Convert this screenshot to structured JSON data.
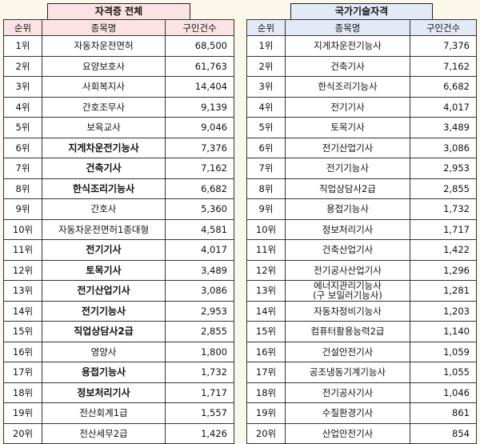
{
  "left": {
    "title": "자격증 전체",
    "headers": {
      "rank": "순위",
      "name": "종목명",
      "count": "구인건수"
    },
    "rows": [
      {
        "rank": "1위",
        "name": "자동차운전면허",
        "count": "68,500",
        "bold": false
      },
      {
        "rank": "2위",
        "name": "요양보호사",
        "count": "61,763",
        "bold": false
      },
      {
        "rank": "3위",
        "name": "사회복지사",
        "count": "14,404",
        "bold": false
      },
      {
        "rank": "4위",
        "name": "간호조무사",
        "count": "9,139",
        "bold": false
      },
      {
        "rank": "5위",
        "name": "보육교사",
        "count": "9,046",
        "bold": false
      },
      {
        "rank": "6위",
        "name": "지게차운전기능사",
        "count": "7,376",
        "bold": true
      },
      {
        "rank": "7위",
        "name": "건축기사",
        "count": "7,162",
        "bold": true
      },
      {
        "rank": "8위",
        "name": "한식조리기능사",
        "count": "6,682",
        "bold": true
      },
      {
        "rank": "9위",
        "name": "간호사",
        "count": "5,360",
        "bold": false
      },
      {
        "rank": "10위",
        "name": "자동차운전면허1종대형",
        "count": "4,581",
        "bold": false
      },
      {
        "rank": "11위",
        "name": "전기기사",
        "count": "4,017",
        "bold": true
      },
      {
        "rank": "12위",
        "name": "토목기사",
        "count": "3,489",
        "bold": true
      },
      {
        "rank": "13위",
        "name": "전기산업기사",
        "count": "3,086",
        "bold": true
      },
      {
        "rank": "14위",
        "name": "전기기능사",
        "count": "2,953",
        "bold": true
      },
      {
        "rank": "15위",
        "name": "직업상담사2급",
        "count": "2,855",
        "bold": true
      },
      {
        "rank": "16위",
        "name": "영양사",
        "count": "1,800",
        "bold": false
      },
      {
        "rank": "17위",
        "name": "용접기능사",
        "count": "1,732",
        "bold": true
      },
      {
        "rank": "18위",
        "name": "정보처리기사",
        "count": "1,717",
        "bold": true
      },
      {
        "rank": "19위",
        "name": "전산회계1급",
        "count": "1,557",
        "bold": false
      },
      {
        "rank": "20위",
        "name": "전산세무2급",
        "count": "1,426",
        "bold": false
      }
    ]
  },
  "right": {
    "title": "국가기술자격",
    "headers": {
      "rank": "순위",
      "name": "종목명",
      "count": "구인건수"
    },
    "rows": [
      {
        "rank": "1위",
        "name": "지게차운전기능사",
        "count": "7,376"
      },
      {
        "rank": "2위",
        "name": "건축기사",
        "count": "7,162"
      },
      {
        "rank": "3위",
        "name": "한식조리기능사",
        "count": "6,682"
      },
      {
        "rank": "4위",
        "name": "전기기사",
        "count": "4,017"
      },
      {
        "rank": "5위",
        "name": "토목기사",
        "count": "3,489"
      },
      {
        "rank": "6위",
        "name": "전기산업기사",
        "count": "3,086"
      },
      {
        "rank": "7위",
        "name": "전기기능사",
        "count": "2,953"
      },
      {
        "rank": "8위",
        "name": "직업상담사2급",
        "count": "2,855"
      },
      {
        "rank": "9위",
        "name": "용접기능사",
        "count": "1,732"
      },
      {
        "rank": "10위",
        "name": "정보처리기사",
        "count": "1,717"
      },
      {
        "rank": "11위",
        "name": "건축산업기사",
        "count": "1,422"
      },
      {
        "rank": "12위",
        "name": "전기공사산업기사",
        "count": "1,296"
      },
      {
        "rank": "13위",
        "name": "에너지관리기능사\n(구 보일러기능사)",
        "count": "1,281"
      },
      {
        "rank": "14위",
        "name": "자동차정비기능사",
        "count": "1,203"
      },
      {
        "rank": "15위",
        "name": "컴퓨터활용능력2급",
        "count": "1,140"
      },
      {
        "rank": "16위",
        "name": "건설안전기사",
        "count": "1,059"
      },
      {
        "rank": "17위",
        "name": "공조냉동기계기능사",
        "count": "1,055"
      },
      {
        "rank": "18위",
        "name": "전기공사기사",
        "count": "1,046"
      },
      {
        "rank": "19위",
        "name": "수질환경기사",
        "count": "861"
      },
      {
        "rank": "20위",
        "name": "산업안전기사",
        "count": "854"
      }
    ]
  }
}
